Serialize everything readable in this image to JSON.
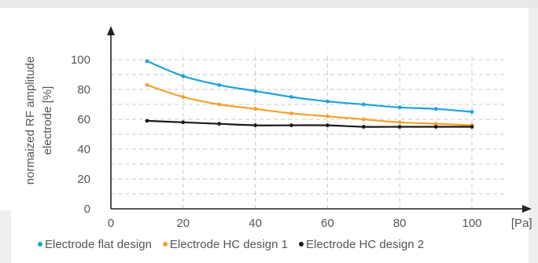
{
  "chart_data": {
    "type": "line",
    "xlabel": "[Pa]",
    "ylabel_lines": [
      "normaized RF amplitude",
      "electrode [%]"
    ],
    "x_ticks": [
      "0",
      "20",
      "40",
      "60",
      "80",
      "100"
    ],
    "y_ticks": [
      "0",
      "20",
      "40",
      "60",
      "80",
      "100"
    ],
    "xlim": [
      0,
      110
    ],
    "ylim": [
      0,
      110
    ],
    "grid": true,
    "legend_position": "bottom",
    "x": [
      10,
      20,
      30,
      40,
      50,
      60,
      70,
      80,
      90,
      100
    ],
    "series": [
      {
        "name": "Electrode flat design",
        "color": "#1aa3df",
        "values": [
          99,
          89,
          83,
          79,
          75,
          72,
          70,
          68,
          67,
          65
        ]
      },
      {
        "name": "Electrode HC design 1",
        "color": "#f4a12a",
        "values": [
          83,
          75,
          70,
          67,
          64,
          62,
          60,
          58,
          57,
          56
        ]
      },
      {
        "name": "Electrode HC design 2",
        "color": "#1a1a1a",
        "values": [
          59,
          58,
          57,
          56,
          56,
          56,
          55,
          55,
          55,
          55
        ]
      }
    ]
  }
}
